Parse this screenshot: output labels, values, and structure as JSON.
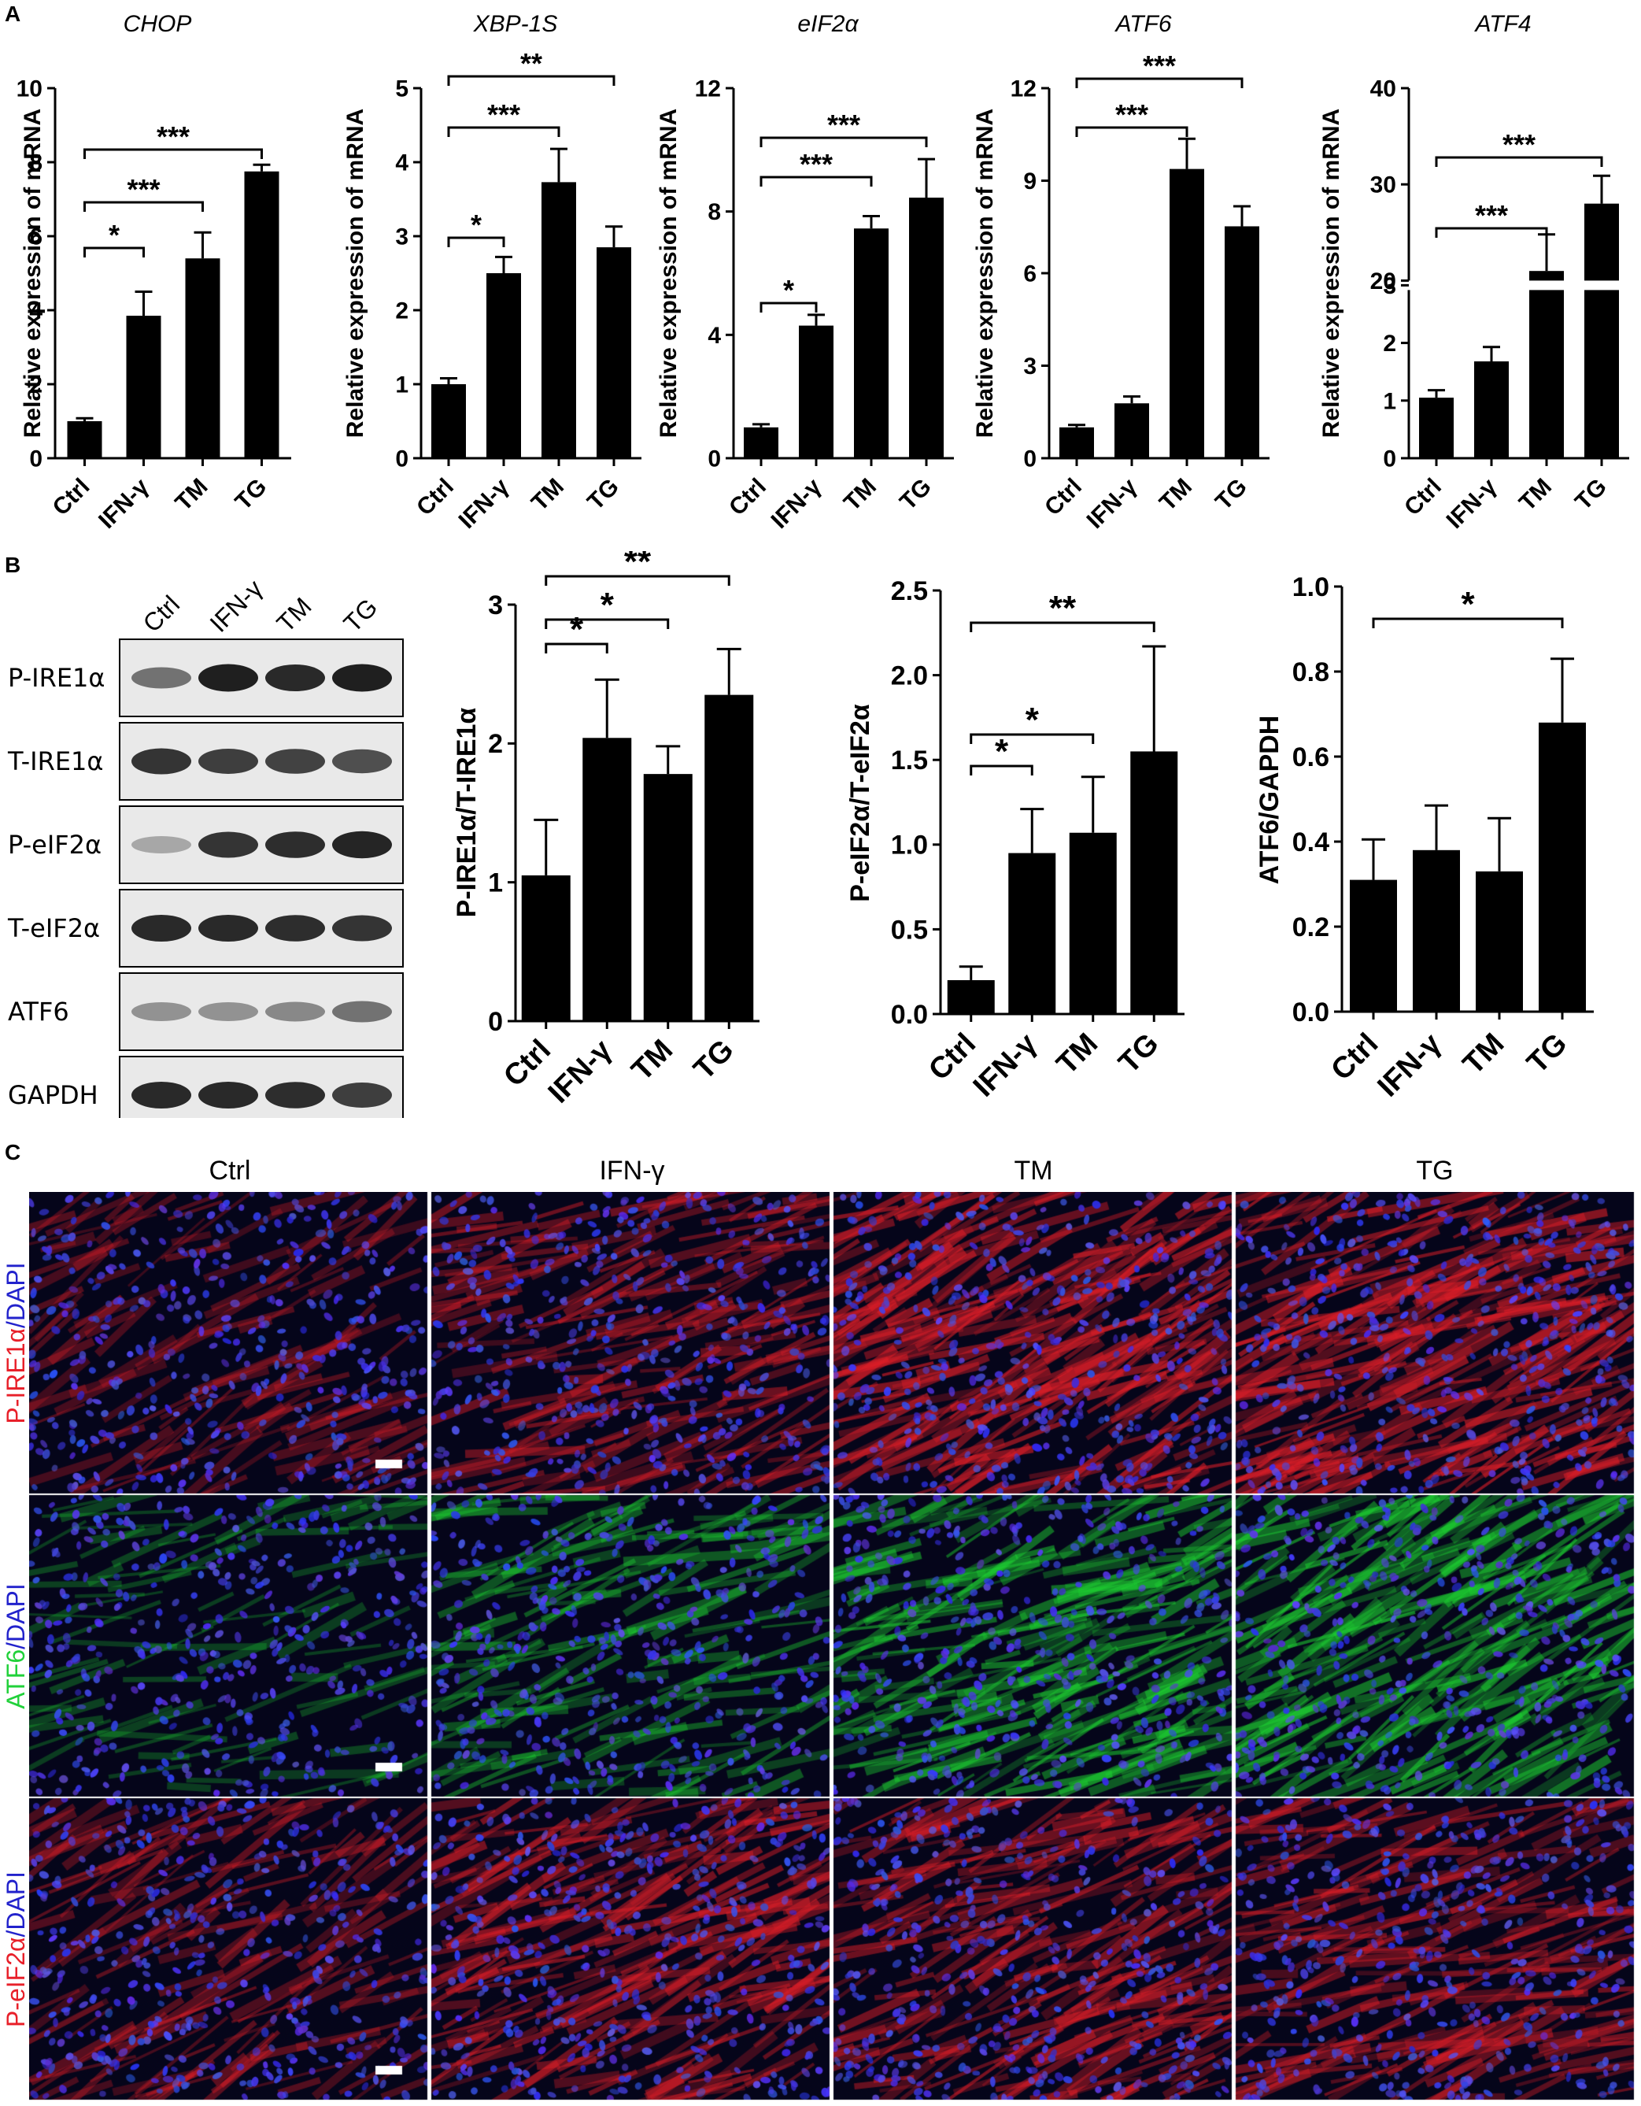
{
  "panels": {
    "a": "A",
    "b": "B",
    "c": "C"
  },
  "colors": {
    "bar": "#000000",
    "red_stain": "#e8202a",
    "green_stain": "#21d13a",
    "blue_stain": "#2222cc"
  },
  "chart_data": [
    {
      "id": "chop",
      "type": "bar",
      "title": "CHOP",
      "ylabel": "Relative expression of mRNA",
      "categories": [
        "Ctrl",
        "IFN-γ",
        "TM",
        "TG"
      ],
      "values": [
        1.0,
        3.85,
        5.4,
        7.75
      ],
      "errors": [
        0.08,
        0.65,
        0.7,
        0.18
      ],
      "ylim": [
        0,
        10
      ],
      "yticks": [
        "0",
        "2",
        "4",
        "6",
        "8",
        "10"
      ],
      "significance": [
        [
          "Ctrl",
          "IFN-γ",
          "*"
        ],
        [
          "Ctrl",
          "TM",
          "***"
        ],
        [
          "Ctrl",
          "TG",
          "***"
        ]
      ]
    },
    {
      "id": "xbp1s",
      "type": "bar",
      "title": "XBP-1S",
      "ylabel": "Relative expression of mRNA",
      "categories": [
        "Ctrl",
        "IFN-γ",
        "TM",
        "TG"
      ],
      "values": [
        1.0,
        2.5,
        3.73,
        2.85
      ],
      "errors": [
        0.08,
        0.22,
        0.45,
        0.28
      ],
      "ylim": [
        0,
        5
      ],
      "yticks": [
        "0",
        "1",
        "2",
        "3",
        "4",
        "5"
      ],
      "significance": [
        [
          "Ctrl",
          "IFN-γ",
          "*"
        ],
        [
          "Ctrl",
          "TM",
          "***"
        ],
        [
          "Ctrl",
          "TG",
          "**"
        ]
      ]
    },
    {
      "id": "eif2a",
      "type": "bar",
      "title": "eIF2α",
      "ylabel": "Relative expression of mRNA",
      "categories": [
        "Ctrl",
        "IFN-γ",
        "TM",
        "TG"
      ],
      "values": [
        1.0,
        4.3,
        7.45,
        8.45
      ],
      "errors": [
        0.1,
        0.35,
        0.4,
        1.25
      ],
      "ylim": [
        0,
        12
      ],
      "yticks": [
        "0",
        "4",
        "8",
        "12"
      ],
      "significance": [
        [
          "Ctrl",
          "IFN-γ",
          "*"
        ],
        [
          "Ctrl",
          "TM",
          "***"
        ],
        [
          "Ctrl",
          "TG",
          "***"
        ]
      ]
    },
    {
      "id": "atf6",
      "type": "bar",
      "title": "ATF6",
      "ylabel": "Relative expression of mRNA",
      "categories": [
        "Ctrl",
        "IFN-γ",
        "TM",
        "TG"
      ],
      "values": [
        1.0,
        1.78,
        9.38,
        7.52
      ],
      "errors": [
        0.08,
        0.22,
        0.98,
        0.65
      ],
      "ylim": [
        0,
        12
      ],
      "yticks": [
        "0",
        "3",
        "6",
        "9",
        "12"
      ],
      "significance": [
        [
          "Ctrl",
          "TM",
          "***"
        ],
        [
          "Ctrl",
          "TG",
          "***"
        ]
      ]
    },
    {
      "id": "atf4",
      "type": "bar",
      "title": "ATF4",
      "ylabel": "Relative expression of mRNA",
      "categories": [
        "Ctrl",
        "IFN-γ",
        "TM",
        "TG"
      ],
      "values": [
        1.05,
        1.68,
        21.0,
        28.0
      ],
      "errors": [
        0.13,
        0.25,
        3.8,
        2.9
      ],
      "axis_break": [
        3,
        20
      ],
      "ylim": [
        0,
        40
      ],
      "yticks": [
        "0",
        "1",
        "2",
        "3",
        "20",
        "30",
        "40"
      ],
      "significance": [
        [
          "Ctrl",
          "TM",
          "***"
        ],
        [
          "Ctrl",
          "TG",
          "***"
        ]
      ]
    },
    {
      "id": "pire1",
      "type": "bar",
      "ylabel": "P-IRE1α/T-IRE1α",
      "categories": [
        "Ctrl",
        "IFN-γ",
        "TM",
        "TG"
      ],
      "values": [
        1.05,
        2.04,
        1.78,
        2.35
      ],
      "errors": [
        0.4,
        0.42,
        0.2,
        0.33
      ],
      "ylim": [
        0,
        3
      ],
      "yticks": [
        "0",
        "1",
        "2",
        "3"
      ],
      "significance": [
        [
          "Ctrl",
          "IFN-γ",
          "*"
        ],
        [
          "Ctrl",
          "TM",
          "*"
        ],
        [
          "Ctrl",
          "TG",
          "**"
        ]
      ]
    },
    {
      "id": "peif2a",
      "type": "bar",
      "ylabel": "P-eIF2α/T-eIF2α",
      "categories": [
        "Ctrl",
        "IFN-γ",
        "TM",
        "TG"
      ],
      "values": [
        0.2,
        0.95,
        1.07,
        1.55
      ],
      "errors": [
        0.08,
        0.26,
        0.33,
        0.62
      ],
      "ylim": [
        0,
        2.5
      ],
      "yticks": [
        "0.0",
        "0.5",
        "1.0",
        "1.5",
        "2.0",
        "2.5"
      ],
      "significance": [
        [
          "Ctrl",
          "IFN-γ",
          "*"
        ],
        [
          "Ctrl",
          "TM",
          "*"
        ],
        [
          "Ctrl",
          "TG",
          "**"
        ]
      ]
    },
    {
      "id": "atf6gapdh",
      "type": "bar",
      "ylabel": "ATF6/GAPDH",
      "categories": [
        "Ctrl",
        "IFN-γ",
        "TM",
        "TG"
      ],
      "values": [
        0.31,
        0.38,
        0.33,
        0.68
      ],
      "errors": [
        0.095,
        0.105,
        0.125,
        0.15
      ],
      "ylim": [
        0,
        1.0
      ],
      "yticks": [
        "0.0",
        "0.2",
        "0.4",
        "0.6",
        "0.8",
        "1.0"
      ],
      "significance": [
        [
          "Ctrl",
          "TG",
          "*"
        ]
      ]
    }
  ],
  "western_blot": {
    "lanes": [
      "Ctrl",
      "IFN-γ",
      "TM",
      "TG"
    ],
    "rows": [
      {
        "label": "P-IRE1α",
        "intensity": [
          0.55,
          0.95,
          0.9,
          0.95
        ]
      },
      {
        "label": "T-IRE1α",
        "intensity": [
          0.85,
          0.8,
          0.78,
          0.72
        ]
      },
      {
        "label": "P-eIF2α",
        "intensity": [
          0.3,
          0.85,
          0.88,
          0.92
        ]
      },
      {
        "label": "T-eIF2α",
        "intensity": [
          0.9,
          0.9,
          0.88,
          0.85
        ]
      },
      {
        "label": "ATF6",
        "intensity": [
          0.4,
          0.4,
          0.45,
          0.55
        ]
      },
      {
        "label": "GAPDH",
        "intensity": [
          0.9,
          0.9,
          0.88,
          0.8
        ]
      }
    ]
  },
  "microscopy": {
    "columns": [
      "Ctrl",
      "IFN-γ",
      "TM",
      "TG"
    ],
    "rows": [
      {
        "label_marker": "P-IRE1α",
        "label_rest": "/DAPI",
        "stain": "red",
        "level": [
          0.25,
          0.5,
          0.8,
          0.8
        ]
      },
      {
        "label_marker": "ATF6",
        "label_rest": "/DAPI",
        "stain": "green",
        "level": [
          0.12,
          0.35,
          0.65,
          0.7
        ]
      },
      {
        "label_marker": "P-eIF2α",
        "label_rest": "/DAPI",
        "stain": "red",
        "level": [
          0.35,
          0.65,
          0.65,
          0.55
        ]
      }
    ]
  }
}
